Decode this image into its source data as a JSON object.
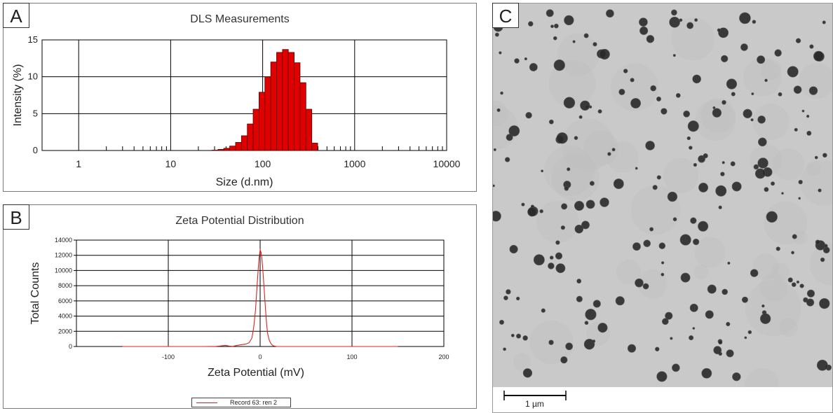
{
  "chart_data": [
    {
      "panel": "A",
      "type": "bar",
      "title": "DLS Measurements",
      "xlabel": "Size (d.nm)",
      "ylabel": "Intensity (%)",
      "xscale": "log",
      "xlim": [
        0.4,
        10000
      ],
      "ylim": [
        0,
        15
      ],
      "x_ticks": [
        "1",
        "10",
        "100",
        "1000",
        "10000"
      ],
      "y_ticks": [
        "0",
        "5",
        "10",
        "15"
      ],
      "grid": true,
      "color": "#e00000",
      "x": [
        28.2,
        32.7,
        37.8,
        43.8,
        50.7,
        58.8,
        68.1,
        78.8,
        91.3,
        105.7,
        122.4,
        141.8,
        164.2,
        190.1,
        220.2,
        255.0,
        295.3,
        342.0
      ],
      "values": [
        0.05,
        0.15,
        0.3,
        0.6,
        1.1,
        2.0,
        3.6,
        5.6,
        7.9,
        10.0,
        12.0,
        13.3,
        13.7,
        13.3,
        11.9,
        9.2,
        5.6,
        1.0
      ]
    },
    {
      "panel": "B",
      "type": "line",
      "title": "Zeta Potential Distribution",
      "xlabel": "Zeta Potential (mV)",
      "ylabel": "Total Counts",
      "xlim": [
        -200,
        200
      ],
      "ylim": [
        0,
        14000
      ],
      "x_ticks": [
        "-100",
        "0",
        "100",
        "200"
      ],
      "y_ticks": [
        "0",
        "2000",
        "4000",
        "6000",
        "8000",
        "10000",
        "12000",
        "14000"
      ],
      "grid": true,
      "series": [
        {
          "name": "Record 63: ren 2",
          "color": "#e02020",
          "x": [
            -150,
            -60,
            -48,
            -42,
            -38,
            -34,
            -30,
            -26,
            -20,
            -16,
            -12,
            -9,
            -7,
            -5,
            -4,
            -3,
            -2,
            -1,
            0,
            1,
            2,
            3,
            4,
            5,
            6,
            7,
            8,
            10,
            12,
            14,
            18,
            40,
            150
          ],
          "y": [
            0,
            0,
            20,
            80,
            150,
            60,
            20,
            120,
            250,
            300,
            500,
            1100,
            2500,
            4800,
            6800,
            8600,
            10400,
            11800,
            12700,
            12400,
            11500,
            10000,
            8300,
            6500,
            4600,
            3000,
            1800,
            800,
            350,
            100,
            0,
            0,
            0
          ]
        }
      ]
    }
  ],
  "panels": {
    "a": {
      "label": "A"
    },
    "b": {
      "label": "B",
      "legend_label": "Record 63: ren 2"
    },
    "c": {
      "label": "C",
      "scale_bar": "1 µm"
    }
  },
  "tem": {
    "background": "#c9c9c9",
    "particle_color": "#2a2a2a"
  }
}
